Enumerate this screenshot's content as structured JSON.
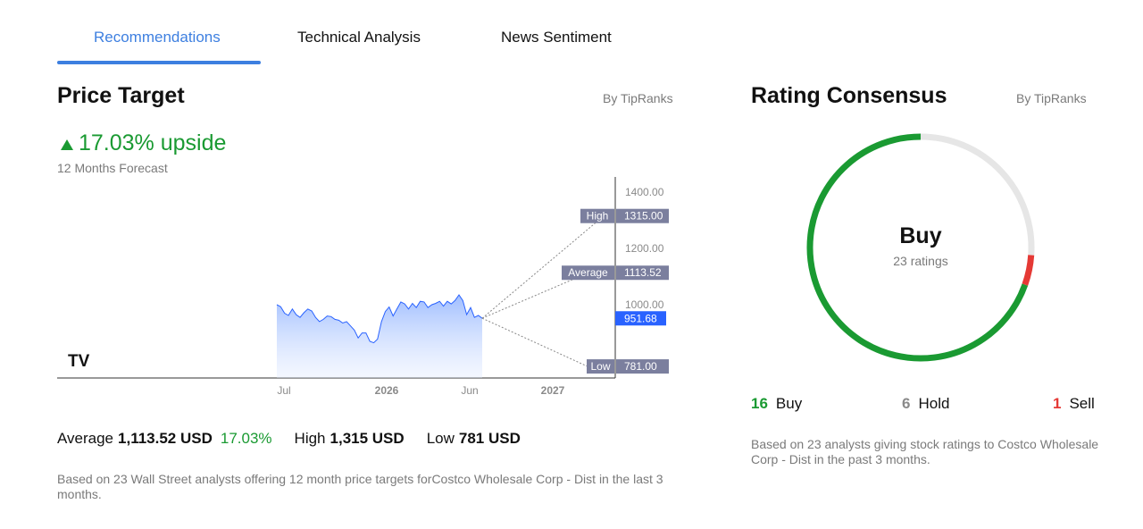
{
  "tabs": [
    {
      "label": "Recommendations",
      "active": true
    },
    {
      "label": "Technical Analysis",
      "active": false
    },
    {
      "label": "News Sentiment",
      "active": false
    }
  ],
  "price_target": {
    "title": "Price Target",
    "source": "By TipRanks",
    "upside": "17.03% upside",
    "forecast_label": "12 Months Forecast",
    "stats": {
      "average_label": "Average",
      "average_value": "1,113.52 USD",
      "average_pct": "17.03%",
      "high_label": "High",
      "high_value": "1,315 USD",
      "low_label": "Low",
      "low_value": "781 USD"
    },
    "note": "Based on 23 Wall Street analysts offering 12 month price targets forCostco Wholesale Corp - Dist in the last 3 months."
  },
  "chart_data": {
    "type": "area",
    "x_ticks": [
      "Jul",
      "2026",
      "Jun",
      "2027"
    ],
    "y_ticks": [
      "1400.00",
      "1200.00",
      "1000.00"
    ],
    "ylim": [
      740,
      1460
    ],
    "price_series": [
      1000,
      993,
      970,
      962,
      985,
      965,
      955,
      972,
      985,
      978,
      955,
      940,
      948,
      960,
      958,
      948,
      945,
      935,
      940,
      925,
      910,
      882,
      900,
      900,
      870,
      865,
      878,
      940,
      976,
      992,
      960,
      985,
      1010,
      1003,
      985,
      1005,
      990,
      1012,
      1010,
      990,
      1000,
      1005,
      1012,
      995,
      1012,
      1003,
      1015,
      1035,
      1015,
      965,
      990,
      955,
      962,
      952
    ],
    "current": {
      "value": 951.68,
      "label": "951.68",
      "color": "#2962ff"
    },
    "targets": [
      {
        "name": "High",
        "value": 1315,
        "label": "1315.00"
      },
      {
        "name": "Average",
        "value": 1113.52,
        "label": "1113.52"
      },
      {
        "name": "Low",
        "value": 781,
        "label": "781.00"
      }
    ],
    "colors": {
      "line": "#2962ff",
      "label_bg": "#7b7f9e"
    },
    "watermark": "TV"
  },
  "consensus": {
    "title": "Rating Consensus",
    "source": "By TipRanks",
    "rating": "Buy",
    "ratings_count": "23 ratings",
    "buy_count": "16",
    "buy_label": "Buy",
    "hold_count": "6",
    "hold_label": "Hold",
    "sell_count": "1",
    "sell_label": "Sell",
    "colors": {
      "buy": "#1a9a32",
      "hold": "#e6e6e6",
      "sell": "#e53935"
    },
    "note": "Based on 23 analysts giving stock ratings to Costco Wholesale Corp - Dist in the past 3 months."
  }
}
